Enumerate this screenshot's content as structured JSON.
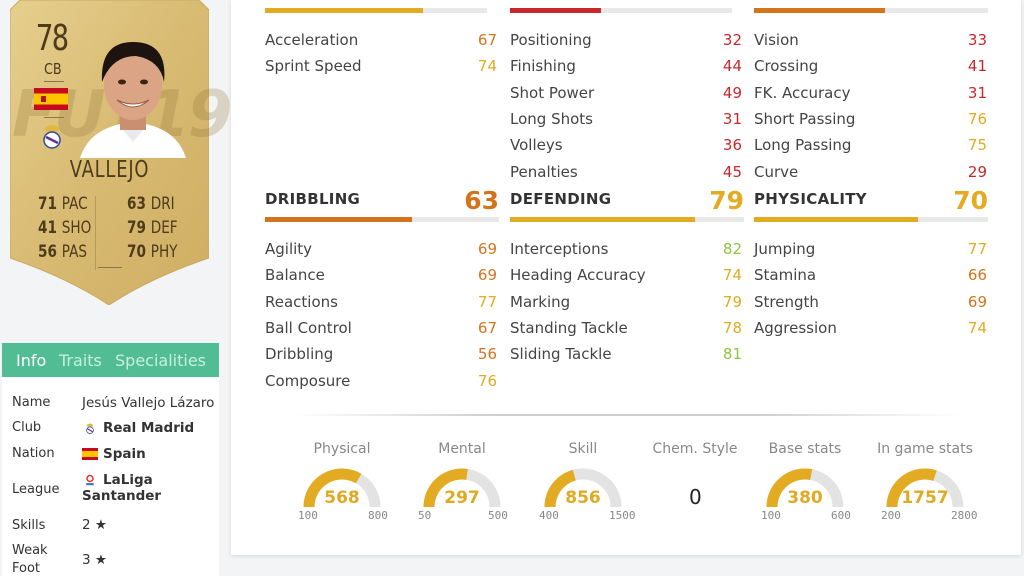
{
  "card": {
    "rating": "78",
    "position": "CB",
    "watermark": "FUT19",
    "name": "VALLEJO",
    "stats": [
      {
        "value": "71",
        "label": "PAC"
      },
      {
        "value": "41",
        "label": "SHO"
      },
      {
        "value": "56",
        "label": "PAS"
      },
      {
        "value": "63",
        "label": "DRI"
      },
      {
        "value": "79",
        "label": "DEF"
      },
      {
        "value": "70",
        "label": "PHY"
      }
    ]
  },
  "tabs": {
    "info": "Info",
    "traits": "Traits",
    "specialities": "Specialities"
  },
  "info": {
    "name_label": "Name",
    "name_value": "Jesús Vallejo Lázaro",
    "club_label": "Club",
    "club_value": "Real Madrid",
    "nation_label": "Nation",
    "nation_value": "Spain",
    "league_label": "League",
    "league_value_1": "LaLiga",
    "league_value_2": "Santander",
    "skills_label": "Skills",
    "skills_value": "2 ★",
    "weakfoot_label_1": "Weak",
    "weakfoot_label_2": "Foot",
    "weakfoot_value": "3 ★"
  },
  "colors": {
    "gold": "#e2ab21",
    "orange": "#d3741d",
    "red": "#c8282b",
    "green": "#8dc63f",
    "accent": "#52bd95"
  },
  "top_bars": {
    "pace": 71,
    "shooting": 41,
    "passing": 56
  },
  "pace_stats": [
    {
      "name": "Acceleration",
      "value": "67"
    },
    {
      "name": "Sprint Speed",
      "value": "74"
    }
  ],
  "shooting_stats": [
    {
      "name": "Positioning",
      "value": "32"
    },
    {
      "name": "Finishing",
      "value": "44"
    },
    {
      "name": "Shot Power",
      "value": "49"
    },
    {
      "name": "Long Shots",
      "value": "31"
    },
    {
      "name": "Volleys",
      "value": "36"
    },
    {
      "name": "Penalties",
      "value": "45"
    }
  ],
  "passing_stats": [
    {
      "name": "Vision",
      "value": "33"
    },
    {
      "name": "Crossing",
      "value": "41"
    },
    {
      "name": "FK. Accuracy",
      "value": "31"
    },
    {
      "name": "Short Passing",
      "value": "76"
    },
    {
      "name": "Long Passing",
      "value": "75"
    },
    {
      "name": "Curve",
      "value": "29"
    }
  ],
  "dribbling": {
    "title": "DRIBBLING",
    "value": "63",
    "stats": [
      {
        "name": "Agility",
        "value": "69"
      },
      {
        "name": "Balance",
        "value": "69"
      },
      {
        "name": "Reactions",
        "value": "77"
      },
      {
        "name": "Ball Control",
        "value": "67"
      },
      {
        "name": "Dribbling",
        "value": "56"
      },
      {
        "name": "Composure",
        "value": "76"
      }
    ]
  },
  "defending": {
    "title": "DEFENDING",
    "value": "79",
    "stats": [
      {
        "name": "Interceptions",
        "value": "82"
      },
      {
        "name": "Heading Accuracy",
        "value": "74"
      },
      {
        "name": "Marking",
        "value": "79"
      },
      {
        "name": "Standing Tackle",
        "value": "78"
      },
      {
        "name": "Sliding Tackle",
        "value": "81"
      }
    ]
  },
  "physicality": {
    "title": "PHYSICALITY",
    "value": "70",
    "stats": [
      {
        "name": "Jumping",
        "value": "77"
      },
      {
        "name": "Stamina",
        "value": "66"
      },
      {
        "name": "Strength",
        "value": "69"
      },
      {
        "name": "Aggression",
        "value": "74"
      }
    ]
  },
  "gauges": [
    {
      "label": "Physical",
      "value": "568",
      "min": "100",
      "max": "800"
    },
    {
      "label": "Mental",
      "value": "297",
      "min": "50",
      "max": "500"
    },
    {
      "label": "Skill",
      "value": "856",
      "min": "400",
      "max": "1500"
    },
    {
      "label": "Base stats",
      "value": "380",
      "min": "100",
      "max": "600"
    },
    {
      "label": "In game stats",
      "value": "1757",
      "min": "200",
      "max": "2800"
    }
  ],
  "chem_style": {
    "label": "Chem. Style",
    "value": "0"
  }
}
